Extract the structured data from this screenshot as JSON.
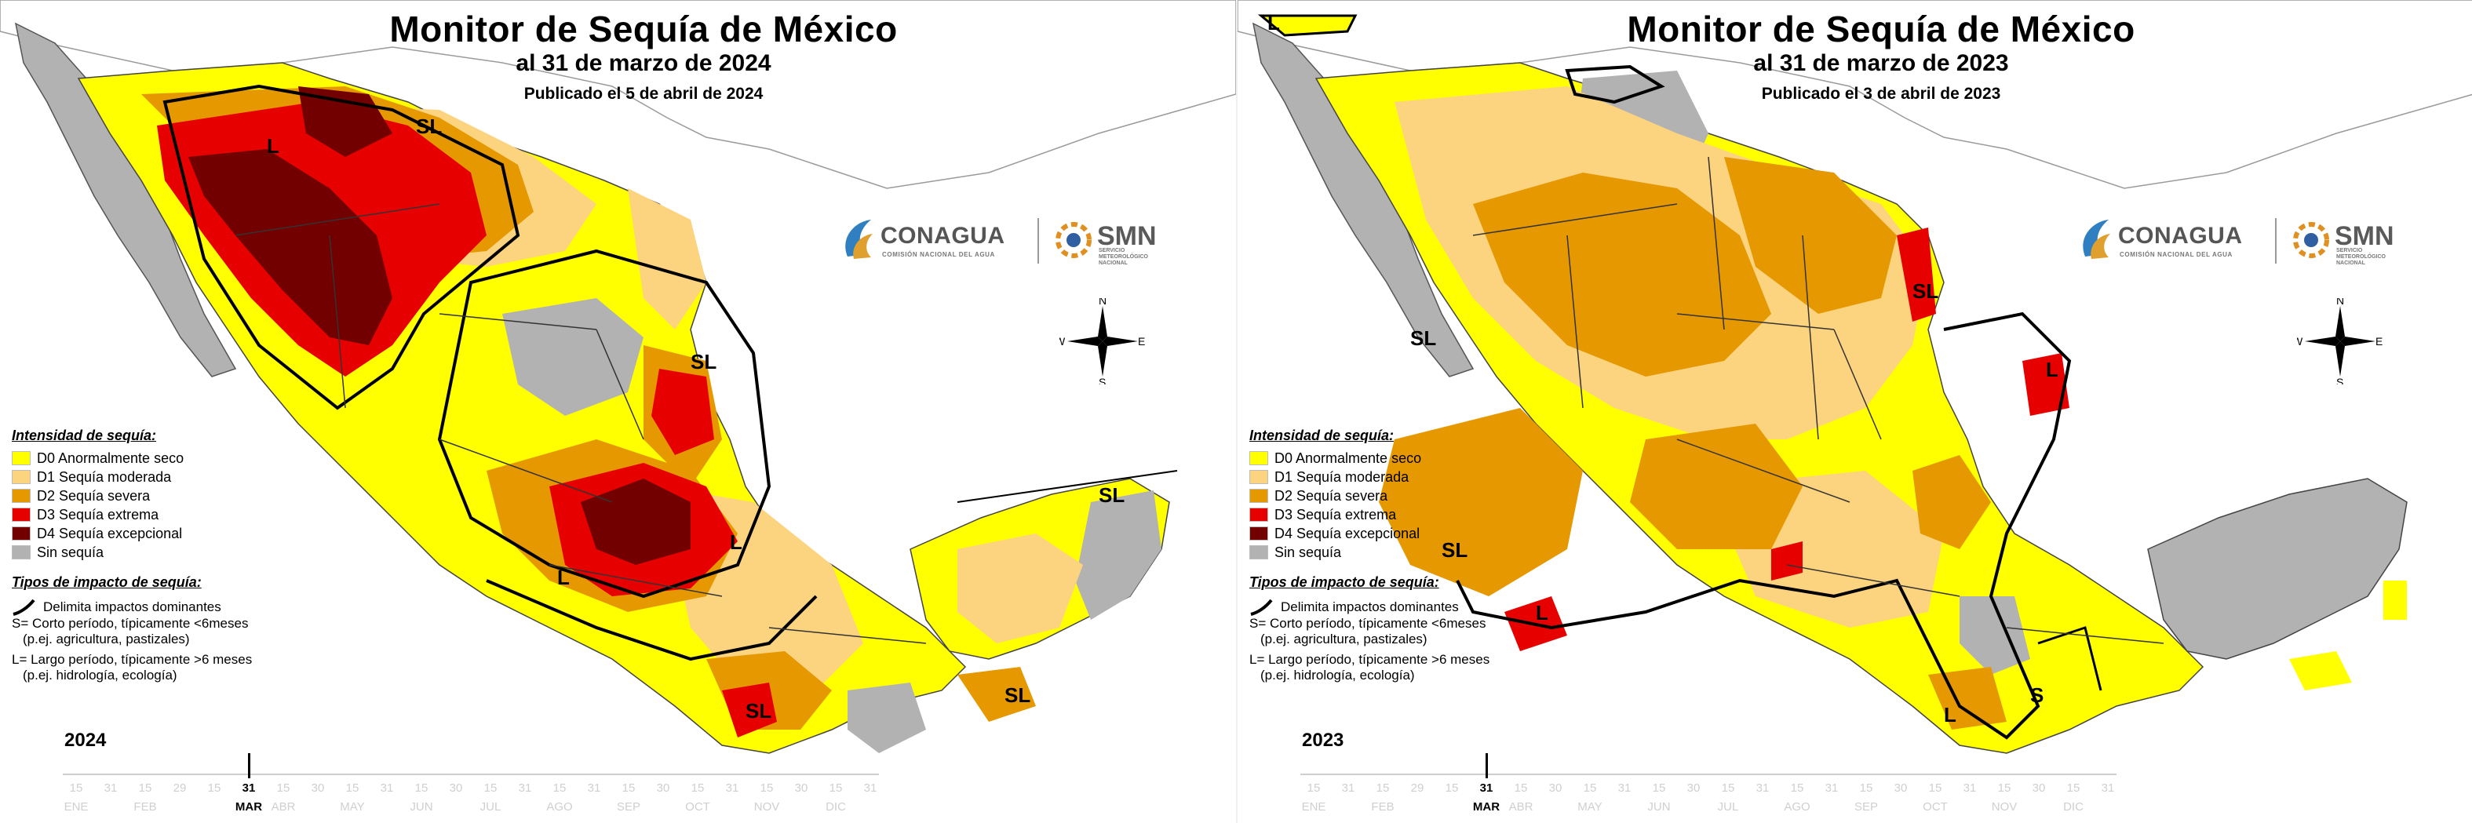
{
  "panels": [
    {
      "title": "Monitor de Sequía de México",
      "subtitle": "al 31 de marzo de 2024",
      "published": "Publicado el 5 de abril de 2024",
      "year": "2024",
      "impact_labels": [
        "L",
        "SL",
        "SL",
        "L",
        "SL",
        "L",
        "SL",
        "SL"
      ]
    },
    {
      "title": "Monitor de Sequía de México",
      "subtitle": "al 31 de marzo de 2023",
      "published": "Publicado el 3 de abril de 2023",
      "year": "2023",
      "impact_labels": [
        "L",
        "SL",
        "SL",
        "L",
        "SL",
        "L",
        "L",
        "S"
      ]
    }
  ],
  "logos": {
    "conagua": "CONAGUA",
    "conagua_sub": "COMISIÓN NACIONAL DEL AGUA",
    "smn": "SMN",
    "smn_sub": "SERVICIO METEOROLÓGICO NACIONAL"
  },
  "compass": {
    "n": "N",
    "s": "S",
    "e": "E",
    "w": "W"
  },
  "legend": {
    "intensity_heading": "Intensidad de sequía:",
    "categories": [
      {
        "label": "D0 Anormalmente seco",
        "color": "#ffff00"
      },
      {
        "label": "D1 Sequía moderada",
        "color": "#fcd37f"
      },
      {
        "label": "D2 Sequía severa",
        "color": "#e69800"
      },
      {
        "label": "D3 Sequía extrema",
        "color": "#e60000"
      },
      {
        "label": "D4 Sequía excepcional",
        "color": "#730000"
      },
      {
        "label": "Sin sequía",
        "color": "#b2b2b2"
      }
    ],
    "impact_heading": "Tipos de impacto de sequía:",
    "impact_line_label": "Delimita impactos dominantes",
    "short_line1": "S= Corto período, típicamente <6meses",
    "short_line2": "(p.ej. agricultura, pastizales)",
    "long_line1": "L= Largo período, típicamente >6 meses",
    "long_line2": "(p.ej. hidrología, ecología)"
  },
  "timeline": {
    "days": [
      "15",
      "31",
      "15",
      "29",
      "15",
      "31",
      "15",
      "30",
      "15",
      "31",
      "15",
      "30",
      "15",
      "31",
      "15",
      "31",
      "15",
      "30",
      "15",
      "31",
      "15",
      "30",
      "15",
      "31"
    ],
    "months": [
      "ENE",
      "FEB",
      "MAR",
      "ABR",
      "MAY",
      "JUN",
      "JUL",
      "AGO",
      "SEP",
      "OCT",
      "NOV",
      "DIC"
    ],
    "active_day": "31",
    "active_month": "MAR"
  }
}
